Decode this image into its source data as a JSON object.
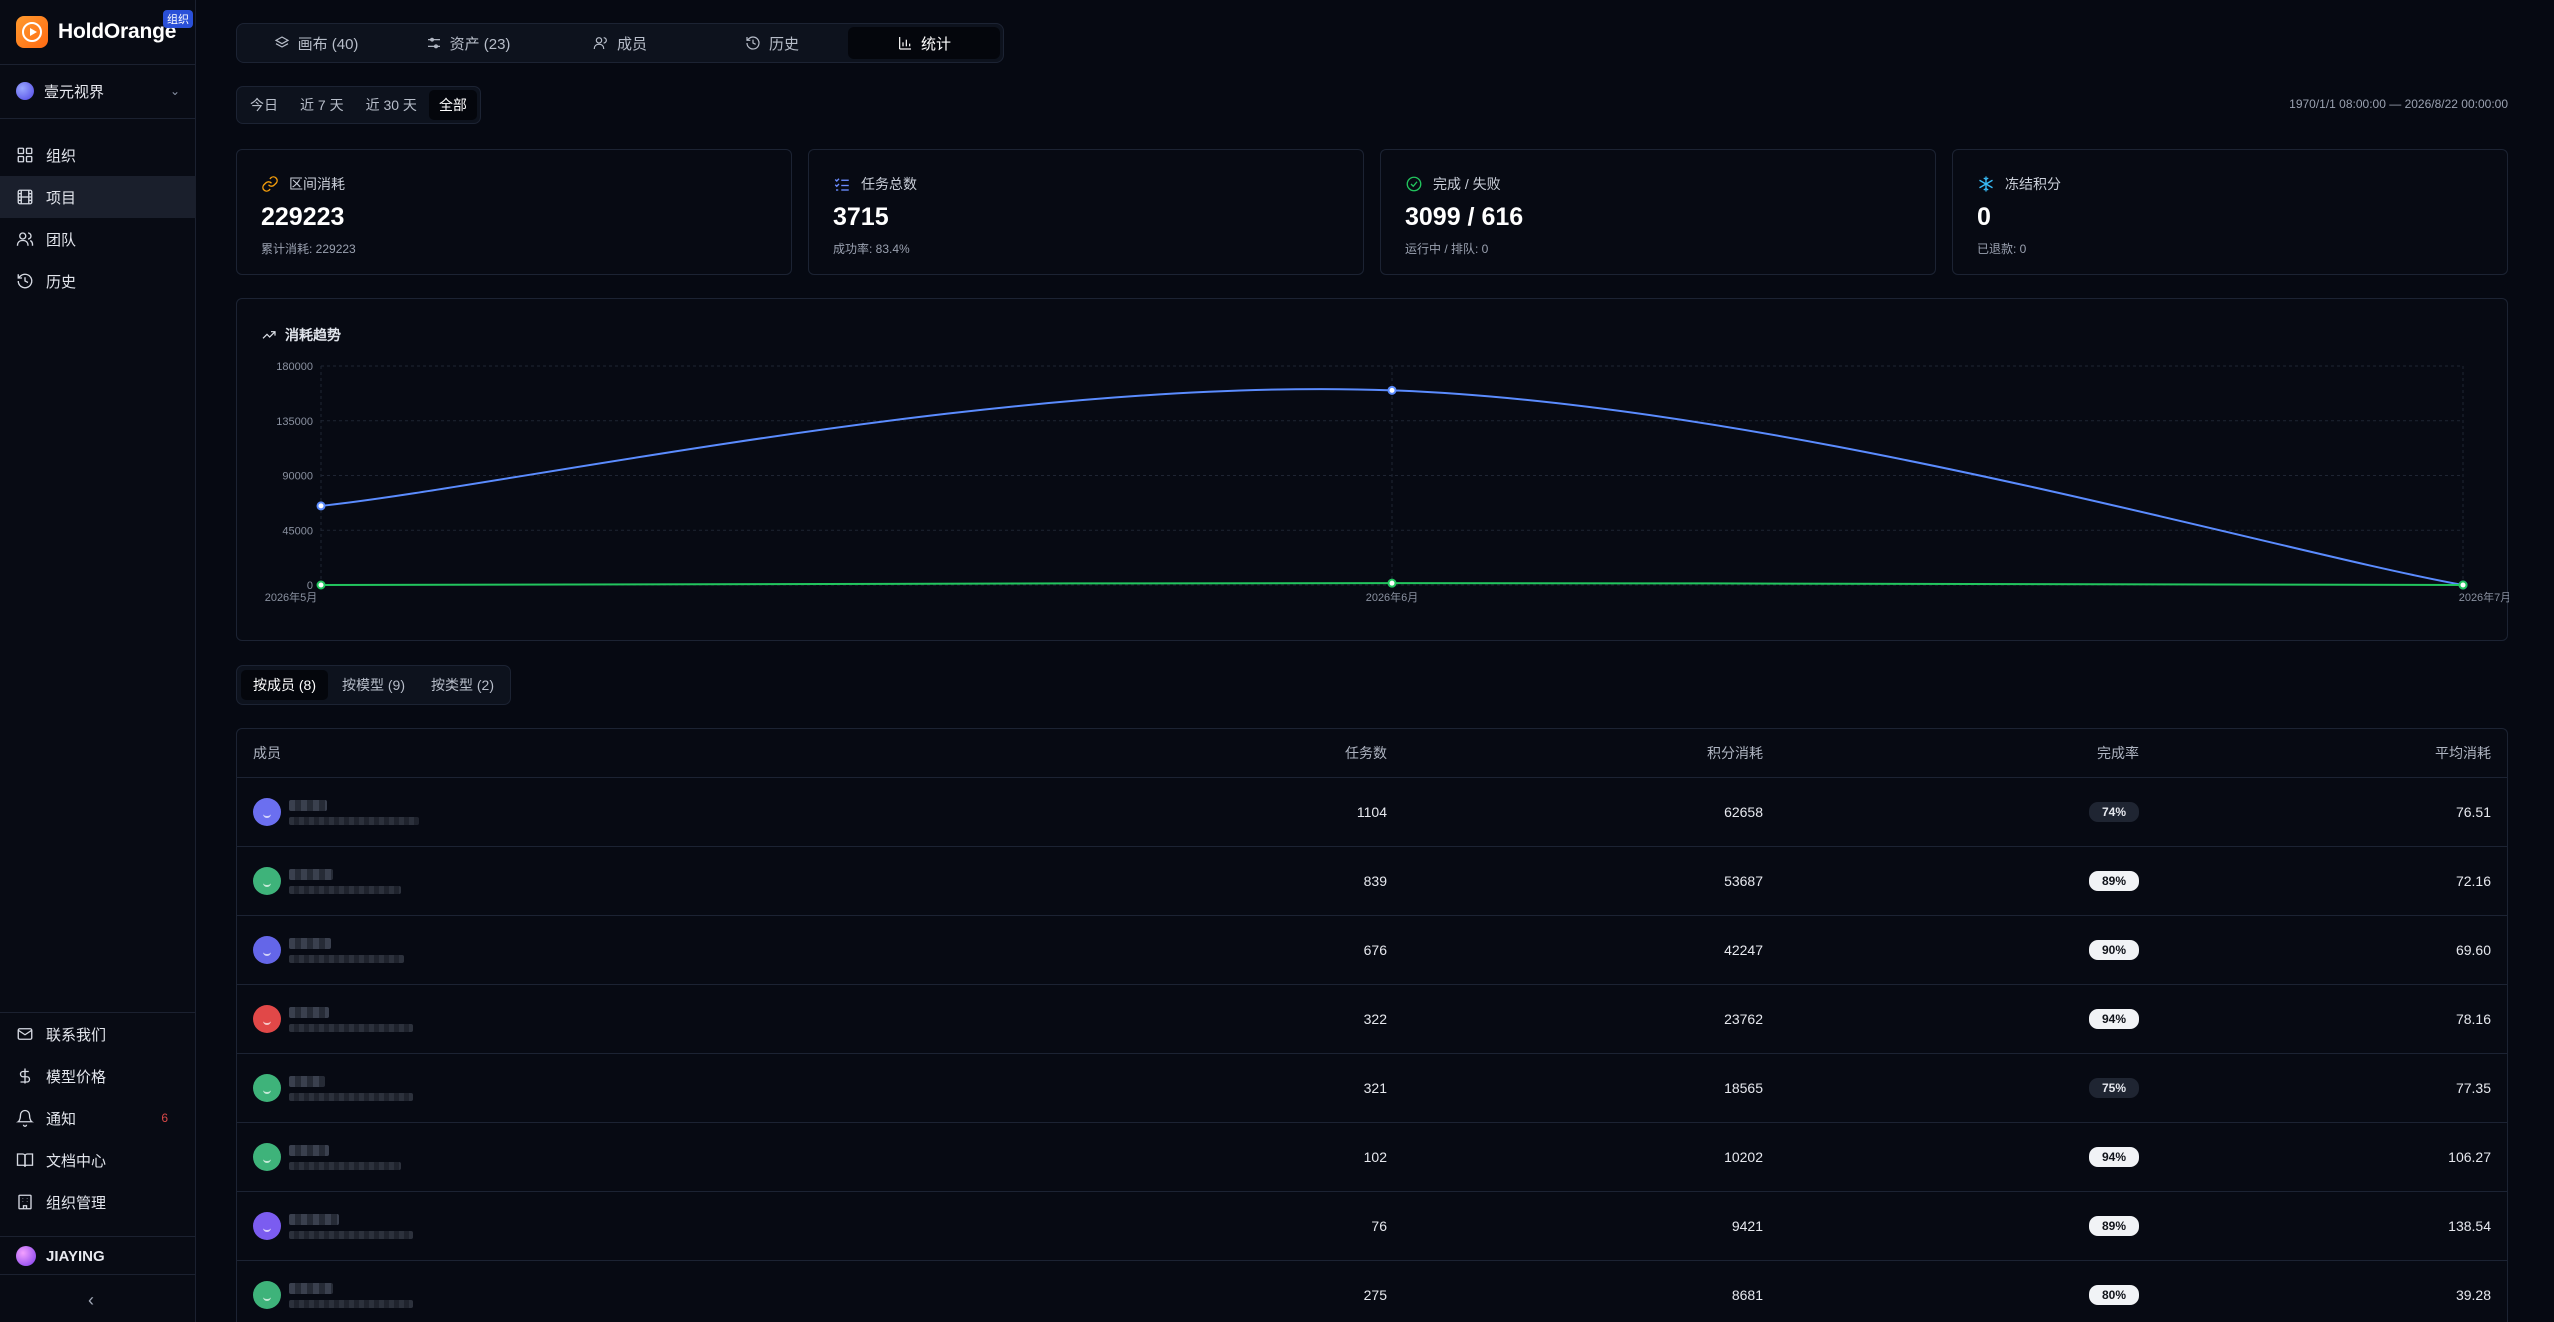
{
  "sidebar": {
    "brand": "HoldOrange",
    "org_badge": "组织",
    "workspace": "壹元视界",
    "nav": [
      "组织",
      "项目",
      "团队",
      "历史"
    ],
    "bottom_nav": [
      "联系我们",
      "模型价格",
      "通知",
      "文档中心",
      "组织管理"
    ],
    "notification_count": "6",
    "user": "JIAYING",
    "collapse_icon": "chevron-left-icon"
  },
  "tabs": [
    "画布 (40)",
    "资产 (23)",
    "成员",
    "历史",
    "统计"
  ],
  "active_tab": "统计",
  "range": {
    "options": [
      "今日",
      "近 7 天",
      "近 30 天",
      "全部"
    ],
    "active": "全部",
    "text": "1970/1/1 08:00:00 — 2026/8/22 00:00:00"
  },
  "stats": [
    {
      "label": "区间消耗",
      "value": "229223",
      "sub": "累计消耗: 229223",
      "icon": "link-icon",
      "color": "#f59e0b"
    },
    {
      "label": "任务总数",
      "value": "3715",
      "sub": "成功率: 83.4%",
      "icon": "list-check-icon",
      "color": "#6b8cff"
    },
    {
      "label": "完成 / 失败",
      "value": "3099 / 616",
      "sub": "运行中 / 排队: 0",
      "icon": "check-circle-icon",
      "color": "#22c55e"
    },
    {
      "label": "冻结积分",
      "value": "0",
      "sub": "已退款: 0",
      "icon": "snowflake-icon",
      "color": "#38bdf8"
    }
  ],
  "chart_title": "消耗趋势",
  "chart_data": {
    "type": "line",
    "categories": [
      "2026年5月",
      "2026年6月",
      "2026年7月"
    ],
    "series": [
      {
        "color": "#5b8cff",
        "values": [
          65000,
          160000,
          0
        ]
      },
      {
        "color": "#22c55e",
        "values": [
          0,
          1500,
          0
        ]
      }
    ],
    "ylim": [
      0,
      180000
    ],
    "yticks": [
      "0",
      "45000",
      "90000",
      "135000",
      "180000"
    ],
    "grid": true
  },
  "sub_tabs": [
    "按成员 (8)",
    "按模型 (9)",
    "按类型 (2)"
  ],
  "active_sub_tab": "按成员 (8)",
  "table": {
    "headers": [
      "成员",
      "任务数",
      "积分消耗",
      "完成率",
      "平均消耗"
    ],
    "rows": [
      {
        "tasks": "1104",
        "credits": "62658",
        "rate": "74%",
        "rate_style": "dark",
        "avg": "76.51",
        "avatar_color": "#6b6ff0"
      },
      {
        "tasks": "839",
        "credits": "53687",
        "rate": "89%",
        "rate_style": "light",
        "avg": "72.16",
        "avatar_color": "#3eb37a"
      },
      {
        "tasks": "676",
        "credits": "42247",
        "rate": "90%",
        "rate_style": "light",
        "avg": "69.60",
        "avatar_color": "#6466e8"
      },
      {
        "tasks": "322",
        "credits": "23762",
        "rate": "94%",
        "rate_style": "light",
        "avg": "78.16",
        "avatar_color": "#e14848"
      },
      {
        "tasks": "321",
        "credits": "18565",
        "rate": "75%",
        "rate_style": "dark",
        "avg": "77.35",
        "avatar_color": "#3eb37a"
      },
      {
        "tasks": "102",
        "credits": "10202",
        "rate": "94%",
        "rate_style": "light",
        "avg": "106.27",
        "avatar_color": "#3eb37a"
      },
      {
        "tasks": "76",
        "credits": "9421",
        "rate": "89%",
        "rate_style": "light",
        "avg": "138.54",
        "avatar_color": "#7b5cf0"
      },
      {
        "tasks": "275",
        "credits": "8681",
        "rate": "80%",
        "rate_style": "light",
        "avg": "39.28",
        "avatar_color": "#3eb37a"
      }
    ]
  }
}
